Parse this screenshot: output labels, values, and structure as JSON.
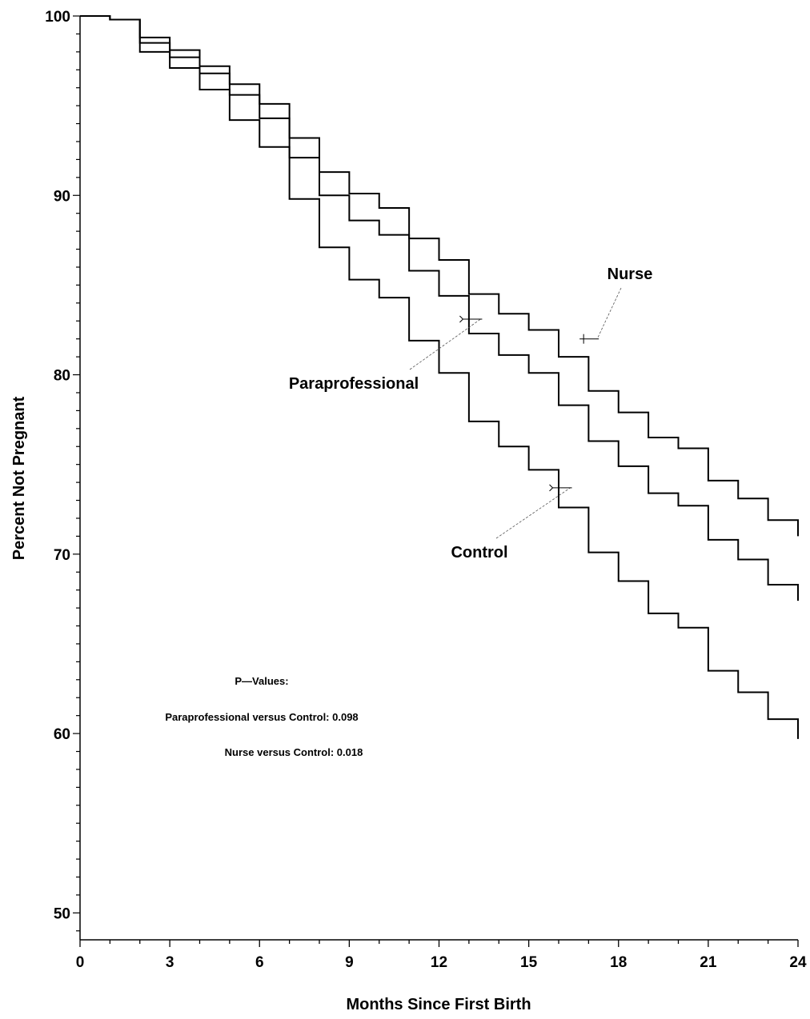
{
  "chart_data": {
    "type": "line",
    "subtype": "kaplan-meier-step",
    "title": "",
    "xlabel": "Months Since First Birth",
    "ylabel": "Percent Not Pregnant",
    "xlim": [
      0,
      24
    ],
    "ylim": [
      48.5,
      100
    ],
    "x_ticks": [
      0,
      3,
      6,
      9,
      12,
      15,
      18,
      21,
      24
    ],
    "y_ticks": [
      50,
      60,
      70,
      80,
      90,
      100
    ],
    "grid": false,
    "legend": "none (series labelled directly on plot)",
    "series": [
      {
        "name": "Nurse",
        "x": [
          0,
          1,
          2,
          3,
          4,
          5,
          6,
          7,
          8,
          9,
          10,
          11,
          12,
          13,
          14,
          15,
          16,
          17,
          18,
          19,
          20,
          21,
          22,
          23,
          24
        ],
        "values": [
          100,
          99.8,
          98.8,
          98.1,
          97.2,
          96.2,
          95.1,
          93.2,
          91.3,
          90.1,
          89.3,
          87.6,
          86.4,
          84.5,
          83.4,
          82.5,
          81.0,
          79.1,
          77.9,
          76.5,
          75.9,
          74.1,
          73.1,
          71.9,
          71.0
        ],
        "label_point": [
          16.7,
          82.0
        ]
      },
      {
        "name": "Paraprofessional",
        "x": [
          0,
          1,
          2,
          3,
          4,
          5,
          6,
          7,
          8,
          9,
          10,
          11,
          12,
          13,
          14,
          15,
          16,
          17,
          18,
          19,
          20,
          21,
          22,
          23,
          24
        ],
        "values": [
          100,
          99.8,
          98.5,
          97.7,
          96.8,
          95.6,
          94.3,
          92.1,
          90.0,
          88.6,
          87.8,
          85.8,
          84.4,
          82.3,
          81.1,
          80.1,
          78.3,
          76.3,
          74.9,
          73.4,
          72.7,
          70.8,
          69.7,
          68.3,
          67.4
        ],
        "label_point": [
          12.8,
          83.1
        ]
      },
      {
        "name": "Control",
        "x": [
          0,
          1,
          2,
          3,
          4,
          5,
          6,
          7,
          8,
          9,
          10,
          11,
          12,
          13,
          14,
          15,
          16,
          17,
          18,
          19,
          20,
          21,
          22,
          23,
          24
        ],
        "values": [
          100,
          99.8,
          98.0,
          97.1,
          95.9,
          94.2,
          92.7,
          89.8,
          87.1,
          85.3,
          84.3,
          81.9,
          80.1,
          77.4,
          76.0,
          74.7,
          72.6,
          70.1,
          68.5,
          66.7,
          65.9,
          63.5,
          62.3,
          60.8,
          59.7
        ],
        "label_point": [
          15.8,
          73.7
        ]
      }
    ],
    "annotations": {
      "pvalues_heading": "P—Values:",
      "pvalue_lines": [
        "Paraprofessional versus Control: 0.098",
        "Nurse versus Control: 0.018"
      ]
    }
  }
}
